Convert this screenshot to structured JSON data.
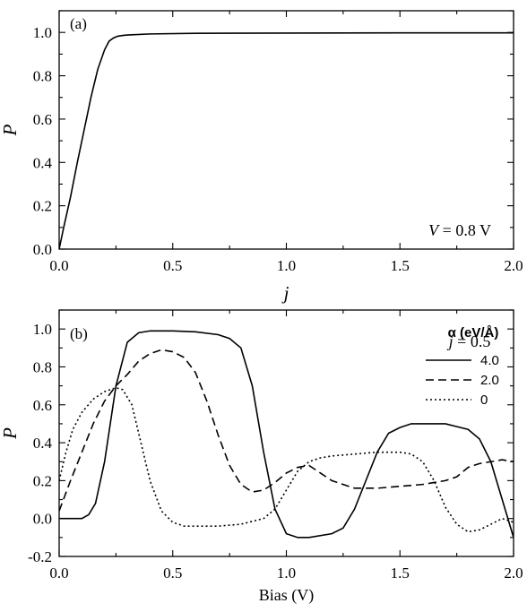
{
  "chart_data": [
    {
      "type": "line",
      "panel_label": "(a)",
      "xlabel": "j",
      "ylabel": "P",
      "xlim": [
        0.0,
        2.0
      ],
      "ylim": [
        0.0,
        1.1
      ],
      "xticks": [
        "0.0",
        "0.5",
        "1.0",
        "1.5",
        "2.0"
      ],
      "yticks": [
        "0.0",
        "0.2",
        "0.4",
        "0.6",
        "0.8",
        "1.0"
      ],
      "annotation": {
        "italic": "V",
        "rest": " = 0.8 V"
      },
      "series": [
        {
          "style": "solid",
          "x": [
            0.0,
            0.02,
            0.05,
            0.08,
            0.11,
            0.14,
            0.17,
            0.2,
            0.22,
            0.24,
            0.26,
            0.28,
            0.3,
            0.4,
            0.6,
            1.0,
            1.5,
            2.0
          ],
          "y": [
            0.0,
            0.1,
            0.24,
            0.4,
            0.55,
            0.7,
            0.83,
            0.92,
            0.96,
            0.975,
            0.983,
            0.986,
            0.988,
            0.993,
            0.996,
            0.997,
            0.998,
            0.998
          ]
        }
      ]
    },
    {
      "type": "line",
      "panel_label": "(b)",
      "xlabel": "Bias (V)",
      "ylabel": "P",
      "xlim": [
        0.0,
        2.0
      ],
      "ylim": [
        -0.2,
        1.1
      ],
      "xticks": [
        "0.0",
        "0.5",
        "1.0",
        "1.5",
        "2.0"
      ],
      "yticks": [
        "-0.2",
        "0.0",
        "0.2",
        "0.4",
        "0.6",
        "0.8",
        "1.0"
      ],
      "annotation": {
        "italic": "j",
        "rest": " = 0.5"
      },
      "legend": {
        "title": "α (eV/Å)",
        "position": "top-right"
      },
      "series": [
        {
          "name": "4.0",
          "style": "solid",
          "x": [
            0.0,
            0.1,
            0.13,
            0.16,
            0.2,
            0.25,
            0.3,
            0.35,
            0.4,
            0.5,
            0.6,
            0.7,
            0.75,
            0.8,
            0.85,
            0.9,
            0.95,
            1.0,
            1.05,
            1.1,
            1.2,
            1.25,
            1.3,
            1.35,
            1.4,
            1.45,
            1.5,
            1.55,
            1.6,
            1.7,
            1.8,
            1.85,
            1.9,
            1.95,
            2.0
          ],
          "y": [
            0.0,
            0.0,
            0.02,
            0.08,
            0.3,
            0.7,
            0.93,
            0.98,
            0.99,
            0.99,
            0.985,
            0.97,
            0.95,
            0.9,
            0.7,
            0.35,
            0.05,
            -0.08,
            -0.1,
            -0.1,
            -0.08,
            -0.05,
            0.05,
            0.2,
            0.35,
            0.45,
            0.48,
            0.5,
            0.5,
            0.5,
            0.47,
            0.42,
            0.3,
            0.1,
            -0.1
          ]
        },
        {
          "name": "2.0",
          "style": "dashed",
          "x": [
            0.0,
            0.05,
            0.1,
            0.15,
            0.2,
            0.25,
            0.3,
            0.35,
            0.4,
            0.45,
            0.5,
            0.55,
            0.6,
            0.65,
            0.7,
            0.75,
            0.8,
            0.85,
            0.9,
            0.95,
            1.0,
            1.05,
            1.1,
            1.15,
            1.2,
            1.3,
            1.4,
            1.5,
            1.6,
            1.7,
            1.75,
            1.8,
            1.85,
            1.9,
            1.95,
            2.0
          ],
          "y": [
            0.04,
            0.2,
            0.35,
            0.5,
            0.62,
            0.7,
            0.76,
            0.83,
            0.87,
            0.89,
            0.88,
            0.85,
            0.77,
            0.62,
            0.44,
            0.28,
            0.18,
            0.14,
            0.15,
            0.19,
            0.24,
            0.27,
            0.28,
            0.24,
            0.2,
            0.16,
            0.16,
            0.17,
            0.18,
            0.2,
            0.22,
            0.27,
            0.29,
            0.3,
            0.31,
            0.3
          ]
        },
        {
          "name": "0",
          "style": "dotted",
          "x": [
            0.0,
            0.03,
            0.06,
            0.1,
            0.15,
            0.2,
            0.25,
            0.28,
            0.32,
            0.36,
            0.4,
            0.45,
            0.5,
            0.55,
            0.6,
            0.7,
            0.8,
            0.9,
            0.95,
            1.0,
            1.05,
            1.1,
            1.15,
            1.2,
            1.3,
            1.4,
            1.5,
            1.55,
            1.6,
            1.65,
            1.7,
            1.75,
            1.8,
            1.85,
            1.9,
            1.95,
            2.0
          ],
          "y": [
            0.2,
            0.35,
            0.47,
            0.56,
            0.63,
            0.67,
            0.69,
            0.68,
            0.6,
            0.4,
            0.2,
            0.04,
            -0.02,
            -0.04,
            -0.04,
            -0.04,
            -0.03,
            0.0,
            0.05,
            0.15,
            0.25,
            0.3,
            0.32,
            0.33,
            0.34,
            0.35,
            0.35,
            0.34,
            0.3,
            0.2,
            0.06,
            -0.03,
            -0.07,
            -0.06,
            -0.03,
            0.0,
            -0.02
          ]
        }
      ]
    }
  ]
}
